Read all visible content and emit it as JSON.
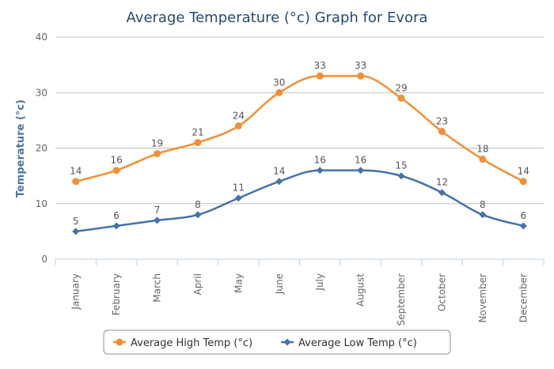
{
  "chart_data": {
    "type": "line",
    "title": "Average Temperature (°c) Graph for Evora",
    "ylabel": "Temperature (°c)",
    "xlabel": "",
    "ylim": [
      0,
      40
    ],
    "yticks": [
      0,
      10,
      20,
      30,
      40
    ],
    "grid": true,
    "categories": [
      "January",
      "February",
      "March",
      "April",
      "May",
      "June",
      "July",
      "August",
      "September",
      "October",
      "November",
      "December"
    ],
    "series": [
      {
        "name": "Average High Temp (°c)",
        "color": "#f28f35",
        "marker": "circle",
        "values": [
          14,
          16,
          19,
          21,
          24,
          30,
          33,
          33,
          29,
          23,
          18,
          14
        ]
      },
      {
        "name": "Average Low Temp (°c)",
        "color": "#4572a7",
        "marker": "diamond",
        "values": [
          5,
          6,
          7,
          8,
          11,
          14,
          16,
          16,
          15,
          12,
          8,
          6
        ]
      }
    ],
    "legend": "bottom"
  }
}
